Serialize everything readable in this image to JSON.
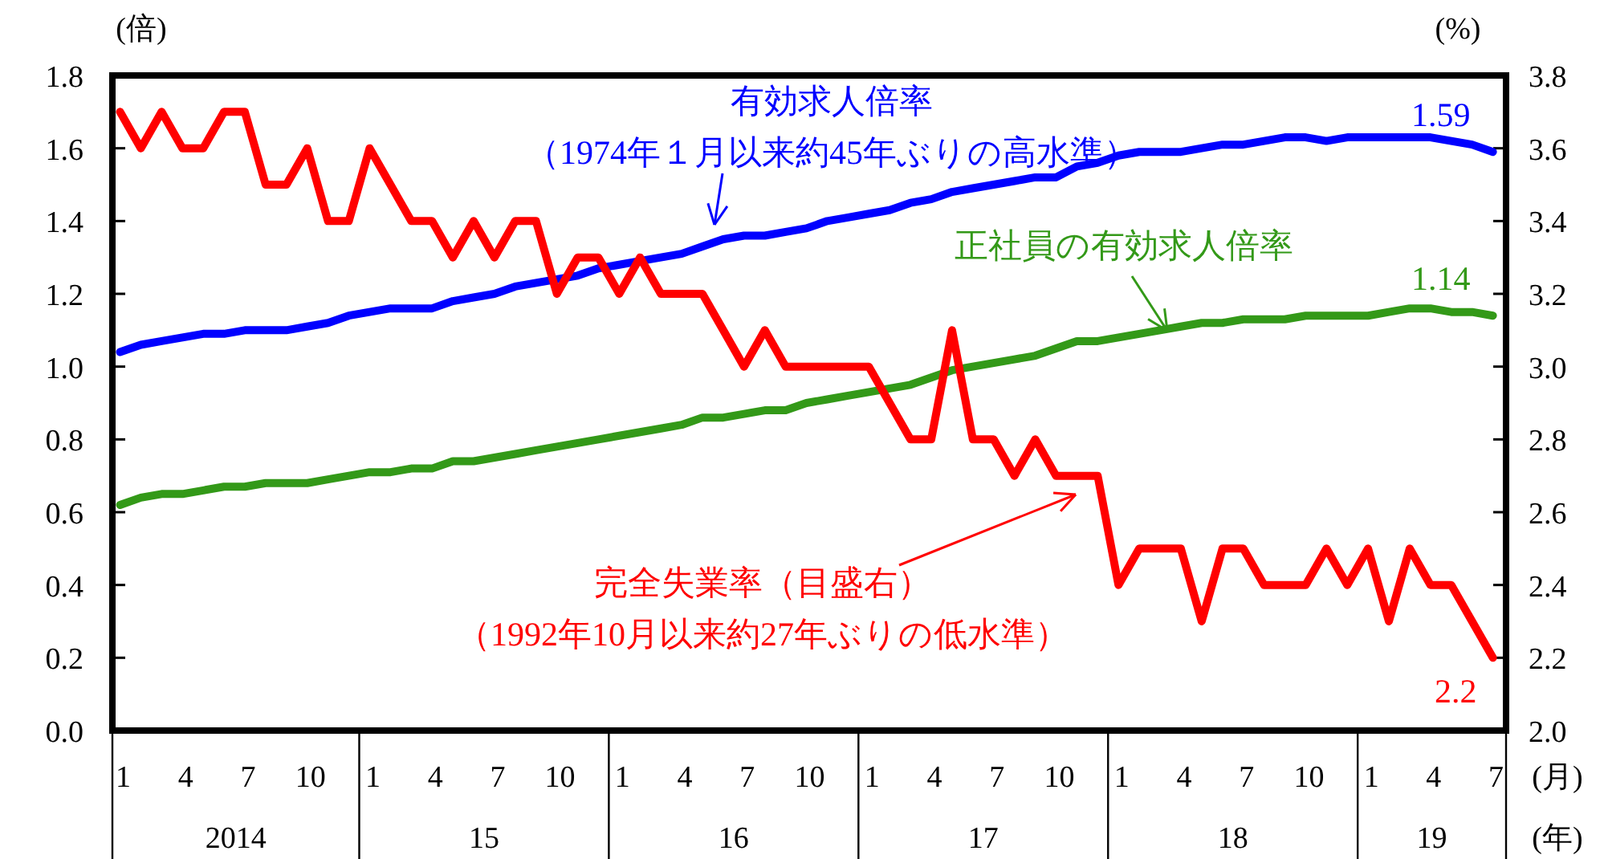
{
  "chart_data": {
    "type": "line",
    "x": [
      "2014-01",
      "2014-02",
      "2014-03",
      "2014-04",
      "2014-05",
      "2014-06",
      "2014-07",
      "2014-08",
      "2014-09",
      "2014-10",
      "2014-11",
      "2014-12",
      "2015-01",
      "2015-02",
      "2015-03",
      "2015-04",
      "2015-05",
      "2015-06",
      "2015-07",
      "2015-08",
      "2015-09",
      "2015-10",
      "2015-11",
      "2015-12",
      "2016-01",
      "2016-02",
      "2016-03",
      "2016-04",
      "2016-05",
      "2016-06",
      "2016-07",
      "2016-08",
      "2016-09",
      "2016-10",
      "2016-11",
      "2016-12",
      "2017-01",
      "2017-02",
      "2017-03",
      "2017-04",
      "2017-05",
      "2017-06",
      "2017-07",
      "2017-08",
      "2017-09",
      "2017-10",
      "2017-11",
      "2017-12",
      "2018-01",
      "2018-02",
      "2018-03",
      "2018-04",
      "2018-05",
      "2018-06",
      "2018-07",
      "2018-08",
      "2018-09",
      "2018-10",
      "2018-11",
      "2018-12",
      "2019-01",
      "2019-02",
      "2019-03",
      "2019-04",
      "2019-05",
      "2019-06",
      "2019-07"
    ],
    "series": [
      {
        "name": "有効求人倍率",
        "color": "#0000ff",
        "values": [
          1.04,
          1.06,
          1.07,
          1.08,
          1.09,
          1.09,
          1.1,
          1.1,
          1.1,
          1.11,
          1.12,
          1.14,
          1.15,
          1.16,
          1.16,
          1.16,
          1.18,
          1.19,
          1.2,
          1.22,
          1.23,
          1.24,
          1.25,
          1.27,
          1.28,
          1.29,
          1.3,
          1.31,
          1.33,
          1.35,
          1.36,
          1.36,
          1.37,
          1.38,
          1.4,
          1.41,
          1.42,
          1.43,
          1.45,
          1.46,
          1.48,
          1.49,
          1.5,
          1.51,
          1.52,
          1.52,
          1.55,
          1.56,
          1.58,
          1.59,
          1.59,
          1.59,
          1.6,
          1.61,
          1.61,
          1.62,
          1.63,
          1.63,
          1.62,
          1.63,
          1.63,
          1.63,
          1.63,
          1.63,
          1.62,
          1.61,
          1.59
        ],
        "value_labels": [
          null,
          null,
          null,
          null,
          null,
          null,
          null,
          null,
          null,
          null,
          null,
          null,
          null,
          null,
          null,
          null,
          null,
          null,
          null,
          null,
          null,
          null,
          null,
          null,
          null,
          null,
          null,
          null,
          null,
          null,
          null,
          null,
          null,
          null,
          null,
          null,
          null,
          null,
          null,
          null,
          null,
          null,
          null,
          null,
          null,
          null,
          null,
          null,
          null,
          null,
          null,
          null,
          null,
          null,
          null,
          null,
          null,
          null,
          null,
          null,
          null,
          null,
          null,
          null,
          null,
          null,
          "1.59"
        ]
      },
      {
        "name": "正社員の有効求人倍率",
        "color": "#339918",
        "values": [
          0.62,
          0.64,
          0.65,
          0.65,
          0.66,
          0.67,
          0.67,
          0.68,
          0.68,
          0.68,
          0.69,
          0.7,
          0.71,
          0.71,
          0.72,
          0.72,
          0.74,
          0.74,
          0.75,
          0.76,
          0.77,
          0.78,
          0.79,
          0.8,
          0.81,
          0.82,
          0.83,
          0.84,
          0.86,
          0.86,
          0.87,
          0.88,
          0.88,
          0.9,
          0.91,
          0.92,
          0.93,
          0.94,
          0.95,
          0.97,
          0.99,
          1.0,
          1.01,
          1.02,
          1.03,
          1.05,
          1.07,
          1.07,
          1.08,
          1.09,
          1.1,
          1.11,
          1.12,
          1.12,
          1.13,
          1.13,
          1.13,
          1.14,
          1.14,
          1.14,
          1.14,
          1.15,
          1.16,
          1.16,
          1.15,
          1.15,
          1.14
        ],
        "value_labels": [
          null,
          null,
          null,
          null,
          null,
          null,
          null,
          null,
          null,
          null,
          null,
          null,
          null,
          null,
          null,
          null,
          null,
          null,
          null,
          null,
          null,
          null,
          null,
          null,
          null,
          null,
          null,
          null,
          null,
          null,
          null,
          null,
          null,
          null,
          null,
          null,
          null,
          null,
          null,
          null,
          null,
          null,
          null,
          null,
          null,
          null,
          null,
          null,
          null,
          null,
          null,
          null,
          null,
          null,
          null,
          null,
          null,
          null,
          null,
          null,
          null,
          null,
          null,
          null,
          null,
          null,
          "1.14"
        ]
      },
      {
        "name": "完全失業率（目盛右）",
        "color": "#ff0000",
        "axis": "y2",
        "values": [
          3.7,
          3.6,
          3.7,
          3.6,
          3.6,
          3.7,
          3.7,
          3.5,
          3.5,
          3.6,
          3.4,
          3.4,
          3.6,
          3.5,
          3.4,
          3.4,
          3.3,
          3.4,
          3.3,
          3.4,
          3.4,
          3.2,
          3.3,
          3.3,
          3.2,
          3.3,
          3.2,
          3.2,
          3.2,
          3.1,
          3.0,
          3.1,
          3.0,
          3.0,
          3.0,
          3.0,
          3.0,
          2.9,
          2.8,
          2.8,
          3.1,
          2.8,
          2.8,
          2.7,
          2.8,
          2.7,
          2.7,
          2.7,
          2.4,
          2.5,
          2.5,
          2.5,
          2.3,
          2.5,
          2.5,
          2.4,
          2.4,
          2.4,
          2.5,
          2.4,
          2.5,
          2.3,
          2.5,
          2.4,
          2.4,
          2.3,
          2.2
        ],
        "value_labels": [
          null,
          null,
          null,
          null,
          null,
          null,
          null,
          null,
          null,
          null,
          null,
          null,
          null,
          null,
          null,
          null,
          null,
          null,
          null,
          null,
          null,
          null,
          null,
          null,
          null,
          null,
          null,
          null,
          null,
          null,
          null,
          null,
          null,
          null,
          null,
          null,
          null,
          null,
          null,
          null,
          null,
          null,
          null,
          null,
          null,
          null,
          null,
          null,
          null,
          null,
          null,
          null,
          null,
          null,
          null,
          null,
          null,
          null,
          null,
          null,
          null,
          null,
          null,
          null,
          null,
          null,
          "2.2"
        ]
      }
    ],
    "ylabel": "(倍)",
    "y2label": "(%)",
    "xlabel": "(月)",
    "xlim": [
      "2013-12-20",
      "2019-07-20"
    ],
    "xticks": [
      {
        "value": "2014-01",
        "label": "1"
      },
      {
        "value": "2014-04",
        "label": "4"
      },
      {
        "value": "2014-07",
        "label": "7"
      },
      {
        "value": "2014-10",
        "label": "10"
      },
      {
        "value": "2015-01",
        "label": "1"
      },
      {
        "value": "2015-04",
        "label": "4"
      },
      {
        "value": "2015-07",
        "label": "7"
      },
      {
        "value": "2015-10",
        "label": "10"
      },
      {
        "value": "2016-01",
        "label": "1"
      },
      {
        "value": "2016-04",
        "label": "4"
      },
      {
        "value": "2016-07",
        "label": "7"
      },
      {
        "value": "2016-10",
        "label": "10"
      },
      {
        "value": "2017-01",
        "label": "1"
      },
      {
        "value": "2017-04",
        "label": "4"
      },
      {
        "value": "2017-07",
        "label": "7"
      },
      {
        "value": "2017-10",
        "label": "10"
      },
      {
        "value": "2018-01",
        "label": "1"
      },
      {
        "value": "2018-04",
        "label": "4"
      },
      {
        "value": "2018-07",
        "label": "7"
      },
      {
        "value": "2018-10",
        "label": "10"
      },
      {
        "value": "2019-01",
        "label": "1"
      },
      {
        "value": "2019-04",
        "label": "4"
      },
      {
        "value": "2019-07",
        "label": "7"
      }
    ],
    "ylim": [
      0,
      1.8
    ],
    "yticks": [
      {
        "value": 0,
        "label": "0.0"
      },
      {
        "value": 0.2,
        "label": "0.2"
      },
      {
        "value": 0.4,
        "label": "0.4"
      },
      {
        "value": 0.6,
        "label": "0.6"
      },
      {
        "value": 0.8,
        "label": "0.8"
      },
      {
        "value": 1.0,
        "label": "1.0"
      },
      {
        "value": 1.2,
        "label": "1.2"
      },
      {
        "value": 1.4,
        "label": "1.4"
      },
      {
        "value": 1.6,
        "label": "1.6"
      },
      {
        "value": 1.8,
        "label": "1.8"
      }
    ],
    "y2lim": [
      2.0,
      3.8
    ],
    "y2ticks": [
      {
        "value": 2.0,
        "label": "2.0"
      },
      {
        "value": 2.2,
        "label": "2.2"
      },
      {
        "value": 2.4,
        "label": "2.4"
      },
      {
        "value": 2.6,
        "label": "2.6"
      },
      {
        "value": 2.8,
        "label": "2.8"
      },
      {
        "value": 3.0,
        "label": "3.0"
      },
      {
        "value": 3.2,
        "label": "3.2"
      },
      {
        "value": 3.4,
        "label": "3.4"
      },
      {
        "value": 3.6,
        "label": "3.6"
      },
      {
        "value": 3.8,
        "label": "3.8"
      }
    ],
    "annotations": [
      "（1974年１月以来約45年ぶりの高水準）",
      "（1992年10月以来約27年ぶりの低水準）",
      "2014",
      "15",
      "16",
      "17",
      "18",
      "19",
      "(年)"
    ],
    "grid": false,
    "legend": false,
    "marker": "none",
    "line_style": "solid"
  }
}
